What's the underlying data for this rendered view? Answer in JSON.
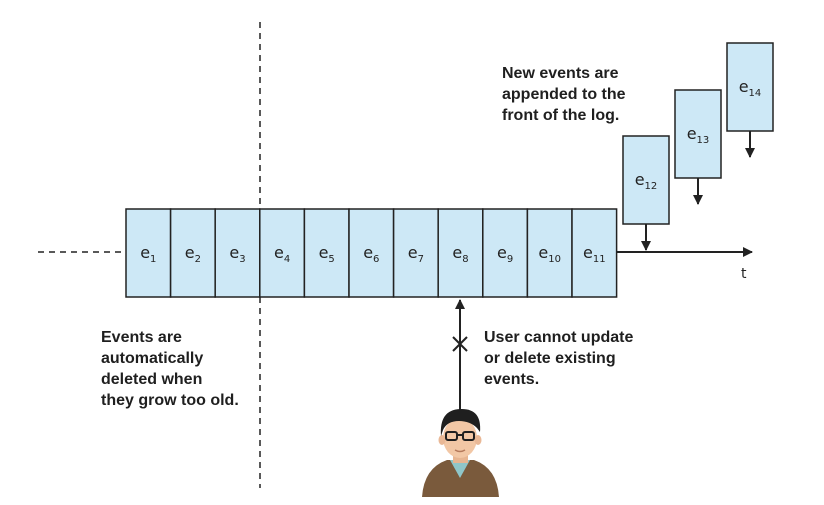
{
  "log_cells": [
    {
      "base": "e",
      "sub": "1"
    },
    {
      "base": "e",
      "sub": "2"
    },
    {
      "base": "e",
      "sub": "3"
    },
    {
      "base": "e",
      "sub": "4"
    },
    {
      "base": "e",
      "sub": "5"
    },
    {
      "base": "e",
      "sub": "6"
    },
    {
      "base": "e",
      "sub": "7"
    },
    {
      "base": "e",
      "sub": "8"
    },
    {
      "base": "e",
      "sub": "9"
    },
    {
      "base": "e",
      "sub": "10"
    },
    {
      "base": "e",
      "sub": "11"
    }
  ],
  "new_events": [
    {
      "base": "e",
      "sub": "12"
    },
    {
      "base": "e",
      "sub": "13"
    },
    {
      "base": "e",
      "sub": "14"
    }
  ],
  "axis_label": "t",
  "notes": {
    "append": [
      "New events are",
      "appended to the",
      "front of the log."
    ],
    "deleted": [
      "Events are",
      "automatically",
      "deleted when",
      "they grow too old."
    ],
    "user": [
      "User cannot update",
      "or delete existing",
      "events."
    ]
  },
  "colors": {
    "cell_fill": "#cde8f6",
    "stroke": "#222222",
    "skin": "#f2c7a5",
    "hair": "#1f1f1f",
    "jacket": "#7a5a3c",
    "shirt": "#8fc6c9"
  },
  "icons": {
    "person": "user-avatar-icon",
    "block_mark": "x-mark-icon"
  }
}
